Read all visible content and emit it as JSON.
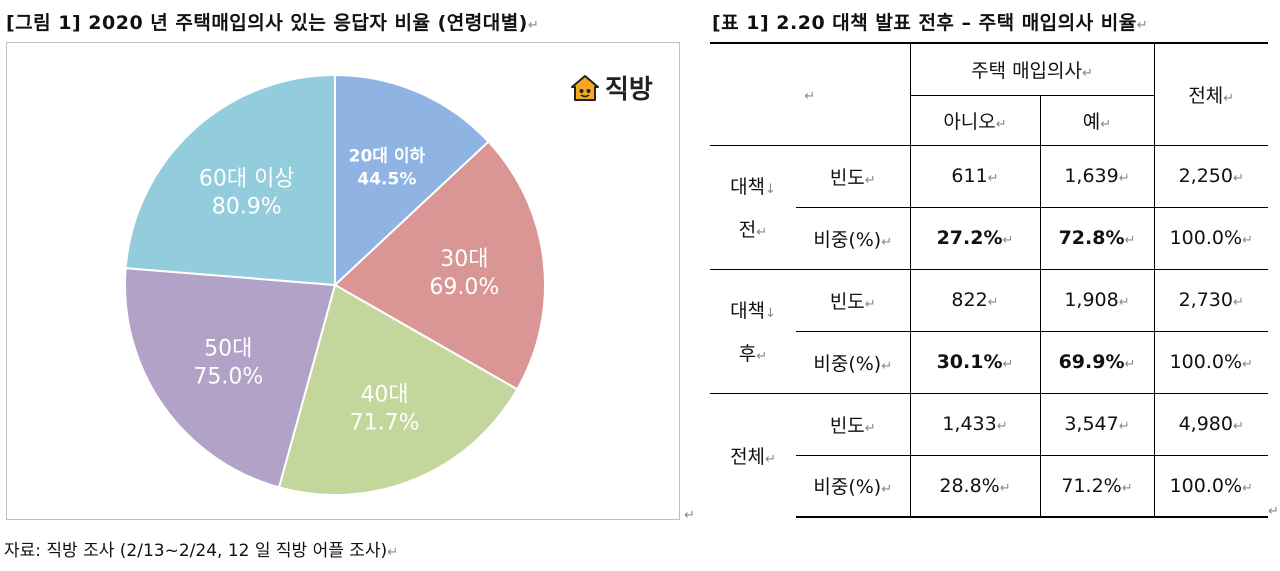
{
  "figure": {
    "title": "[그림 1] 2020 년 주택매입의사 있는 응답자 비율 (연령대별)",
    "logo_text": "직방",
    "source": "자료: 직방 조사 (2/13~2/24, 12 일 직방 어플 조사)"
  },
  "chart_data": {
    "type": "pie",
    "title": "[그림 1] 2020 년 주택매입의사 있는 응답자 비율 (연령대별)",
    "slices": [
      {
        "label": "20대 이하",
        "value_label": "44.5%",
        "value": 44.5,
        "color": "#8fb4e3"
      },
      {
        "label": "30대",
        "value_label": "69.0%",
        "value": 69.0,
        "color": "#d99694"
      },
      {
        "label": "40대",
        "value_label": "71.7%",
        "value": 71.7,
        "color": "#c3d69b"
      },
      {
        "label": "50대",
        "value_label": "75.0%",
        "value": 75.0,
        "color": "#b3a2c7"
      },
      {
        "label": "60대 이상",
        "value_label": "80.9%",
        "value": 80.9,
        "color": "#93cddd"
      }
    ]
  },
  "table": {
    "title": "[표 1] 2.20 대책 발표 전후 – 주택 매입의사 비율",
    "header": {
      "group": "주택 매입의사",
      "no": "아니오",
      "yes": "예",
      "total": "전체"
    },
    "groups": [
      {
        "name_line1": "대책",
        "name_line2": "전",
        "freq": {
          "label": "빈도",
          "no": "611",
          "yes": "1,639",
          "total": "2,250"
        },
        "share": {
          "label": "비중(%)",
          "no": "27.2%",
          "yes": "72.8%",
          "total": "100.0%"
        }
      },
      {
        "name_line1": "대책",
        "name_line2": "후",
        "freq": {
          "label": "빈도",
          "no": "822",
          "yes": "1,908",
          "total": "2,730"
        },
        "share": {
          "label": "비중(%)",
          "no": "30.1%",
          "yes": "69.9%",
          "total": "100.0%"
        }
      },
      {
        "name_line1": "전체",
        "name_line2": "",
        "freq": {
          "label": "빈도",
          "no": "1,433",
          "yes": "3,547",
          "total": "4,980"
        },
        "share": {
          "label": "비중(%)",
          "no": "28.8%",
          "yes": "71.2%",
          "total": "100.0%"
        }
      }
    ]
  },
  "marks": {
    "para": "↵",
    "line": "↓"
  },
  "icons": {
    "logo": "house-icon"
  }
}
